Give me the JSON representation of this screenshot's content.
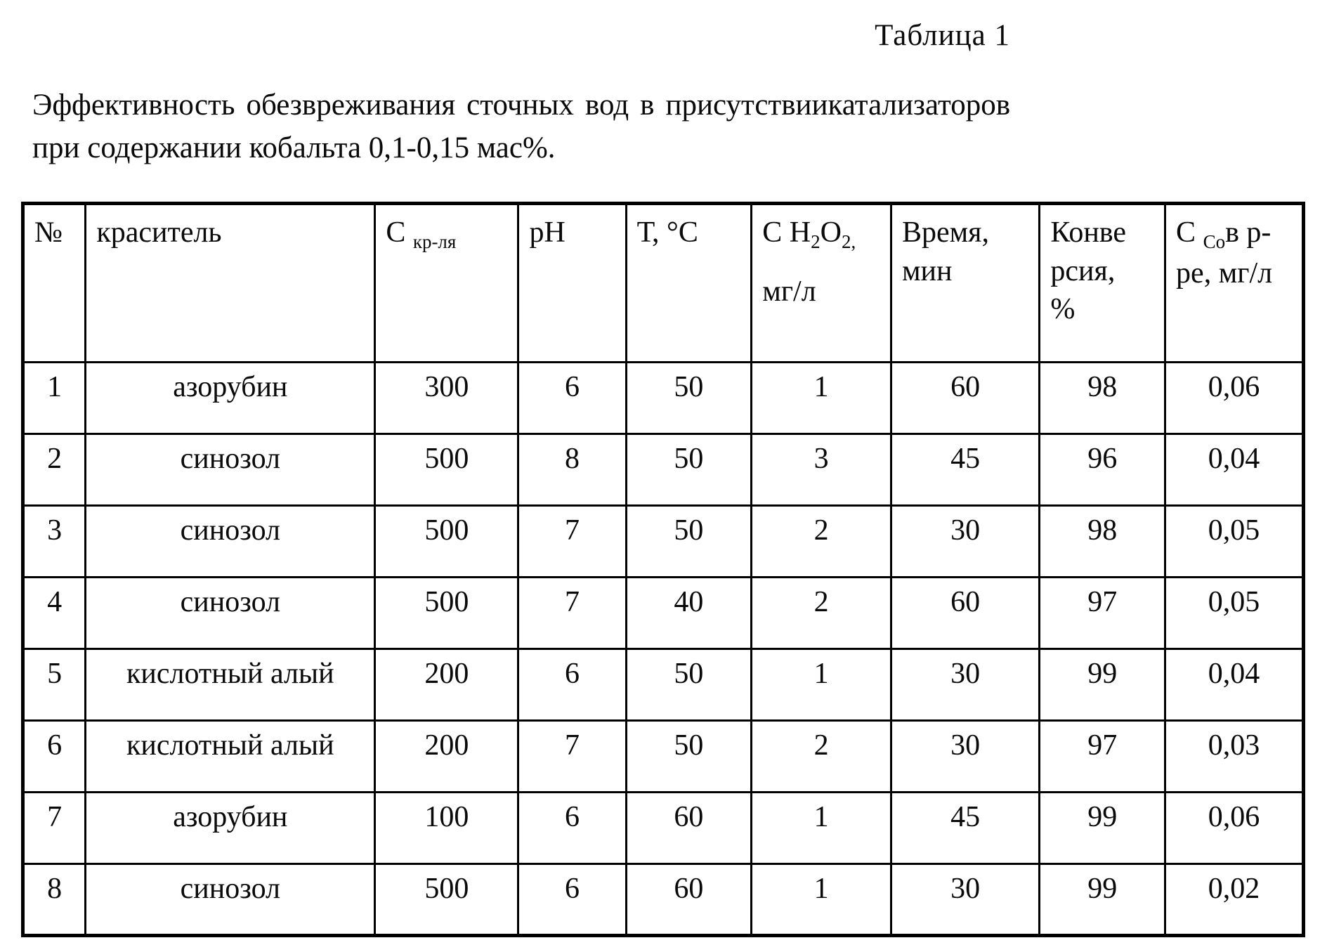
{
  "document": {
    "table_label": "Таблица 1",
    "caption_line1": "Эффективность обезвреживания сточных вод в присутствиикатализаторов",
    "caption_line2": "при содержании кобальта 0,1-0,15 мас%."
  },
  "table": {
    "col_widths_pct": [
      4.9,
      22.6,
      11.2,
      8.4,
      9.8,
      10.9,
      11.6,
      9.8,
      10.8
    ],
    "headers": [
      {
        "name": "row-number",
        "lines": [
          [
            {
              "t": "№"
            }
          ]
        ]
      },
      {
        "name": "dye",
        "lines": [
          [
            {
              "t": "краситель"
            }
          ]
        ]
      },
      {
        "name": "dye-concentration",
        "lines": [
          [
            {
              "t": "С "
            },
            {
              "t": "кр-ля",
              "sub": true
            }
          ]
        ]
      },
      {
        "name": "ph",
        "lines": [
          [
            {
              "t": "pH"
            }
          ]
        ]
      },
      {
        "name": "temperature",
        "lines": [
          [
            {
              "t": "Т, °С"
            }
          ]
        ]
      },
      {
        "name": "h2o2-concentration",
        "lines": [
          [
            {
              "t": "С H"
            },
            {
              "t": "2",
              "sub": true
            },
            {
              "t": "O"
            },
            {
              "t": "2,",
              "sub": true
            }
          ],
          [],
          [
            {
              "t": "мг/л"
            }
          ]
        ]
      },
      {
        "name": "time",
        "lines": [
          [
            {
              "t": "Время,"
            }
          ],
          [
            {
              "t": "мин"
            }
          ]
        ]
      },
      {
        "name": "conversion",
        "lines": [
          [
            {
              "t": "Конве"
            }
          ],
          [
            {
              "t": "рсия,"
            }
          ],
          [
            {
              "t": "%"
            }
          ]
        ]
      },
      {
        "name": "co-concentration",
        "lines": [
          [
            {
              "t": "С "
            },
            {
              "t": "Со",
              "sub": true
            },
            {
              "t": "в р-"
            }
          ],
          [
            {
              "t": "ре, мг/л"
            }
          ]
        ]
      }
    ],
    "rows": [
      [
        "1",
        "азорубин",
        "300",
        "6",
        "50",
        "1",
        "60",
        "98",
        "0,06"
      ],
      [
        "2",
        "синозол",
        "500",
        "8",
        "50",
        "3",
        "45",
        "96",
        "0,04"
      ],
      [
        "3",
        "синозол",
        "500",
        "7",
        "50",
        "2",
        "30",
        "98",
        "0,05"
      ],
      [
        "4",
        "синозол",
        "500",
        "7",
        "40",
        "2",
        "60",
        "97",
        "0,05"
      ],
      [
        "5",
        "кислотный алый",
        "200",
        "6",
        "50",
        "1",
        "30",
        "99",
        "0,04"
      ],
      [
        "6",
        "кислотный алый",
        "200",
        "7",
        "50",
        "2",
        "30",
        "97",
        "0,03"
      ],
      [
        "7",
        "азорубин",
        "100",
        "6",
        "60",
        "1",
        "45",
        "99",
        "0,06"
      ],
      [
        "8",
        "синозол",
        "500",
        "6",
        "60",
        "1",
        "30",
        "99",
        "0,02"
      ]
    ]
  }
}
